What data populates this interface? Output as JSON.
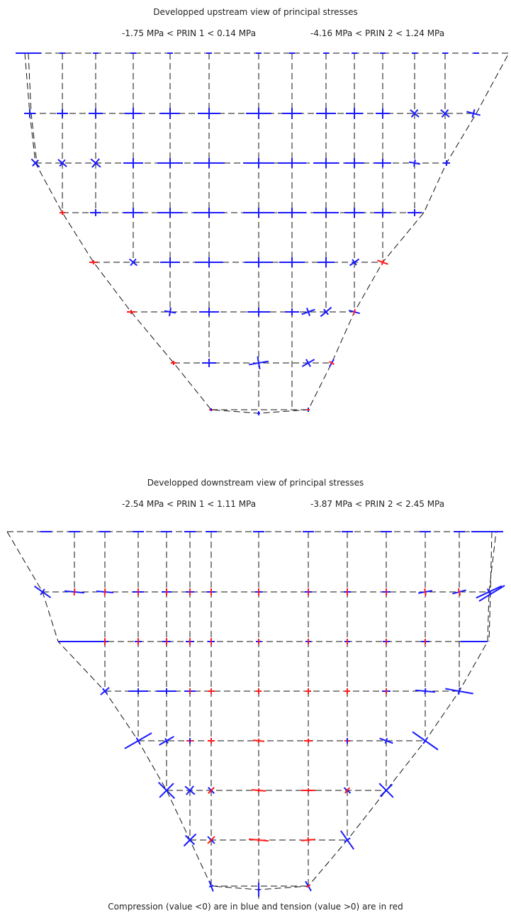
{
  "upstream": {
    "title": "Developped upstream view of principal stresses",
    "range_prin1": "-1.75 MPa < PRIN 1 < 0.14 MPa",
    "range_prin2": "-4.16 MPa < PRIN 2 < 1.24 MPa"
  },
  "downstream": {
    "title": "Developped downstream view of principal stresses",
    "range_prin1": "-2.54 MPa < PRIN 1 < 1.11 MPa",
    "range_prin2": "-3.87 MPa < PRIN 2 < 2.45 MPa"
  },
  "legend": {
    "text": "Compression (value <0) are in blue and tension (value >0) are in red",
    "compression_color": "#1a1aff",
    "tension_color": "#ff1a1a"
  }
}
